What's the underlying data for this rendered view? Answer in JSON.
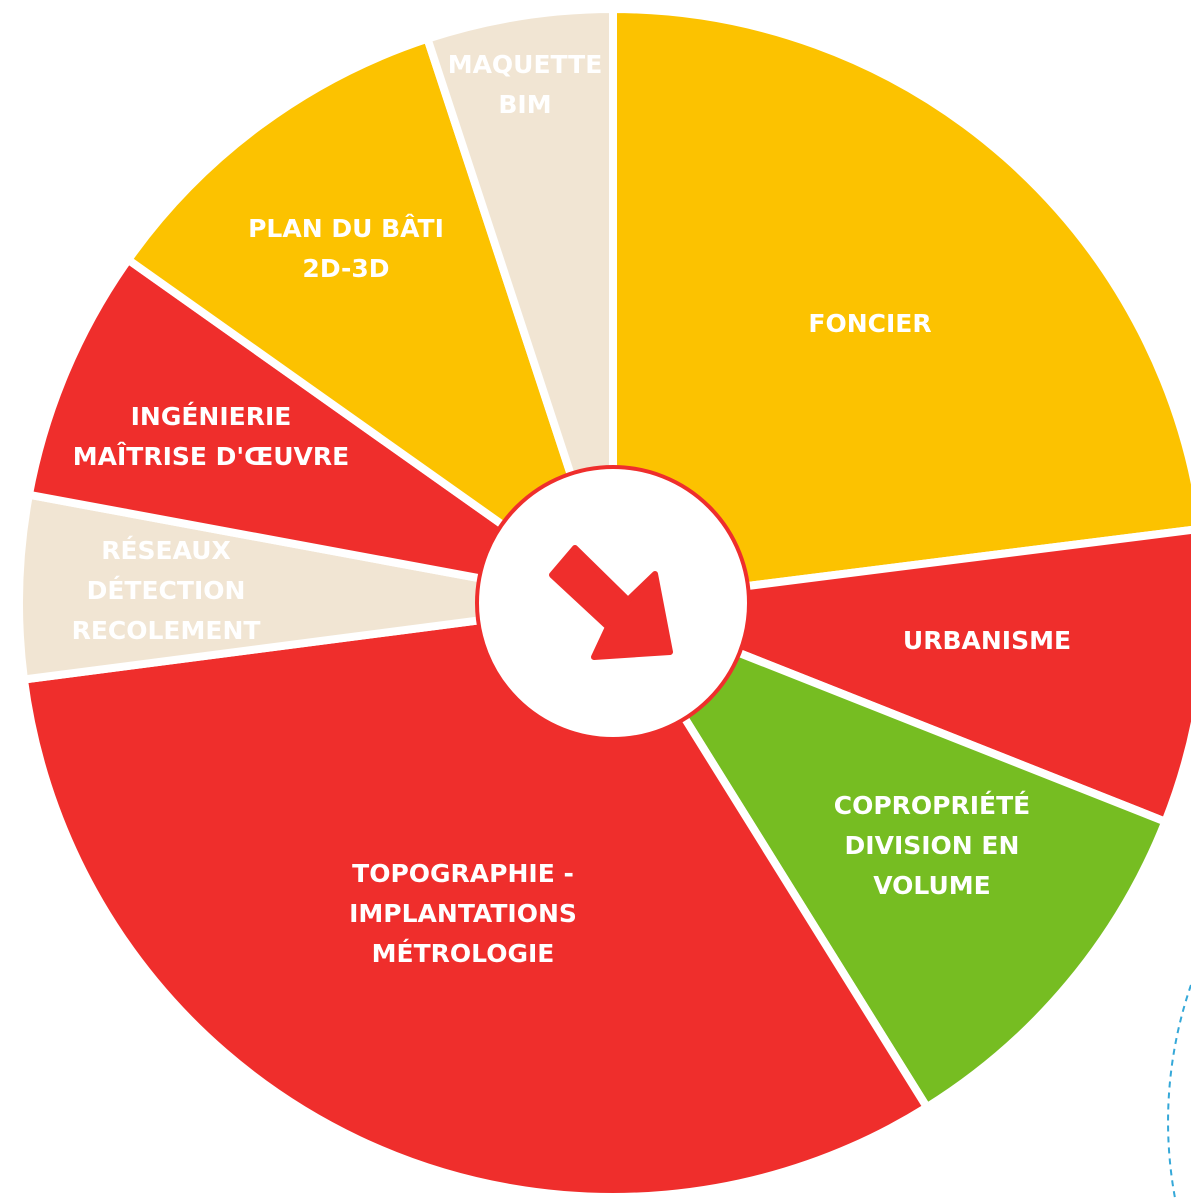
{
  "wheel": {
    "segments": [
      {
        "lines": [
          "FONCIER"
        ],
        "color": "#fcc200"
      },
      {
        "lines": [
          "URBANISME"
        ],
        "color": "#ef2e2c"
      },
      {
        "lines": [
          "COPROPRIÉTÉ",
          "DIVISION EN",
          "VOLUME"
        ],
        "color": "#76bd22"
      },
      {
        "lines": [
          "TOPOGRAPHIE -",
          "IMPLANTATIONS",
          "MÉTROLOGIE"
        ],
        "color": "#ef2e2c"
      },
      {
        "lines": [
          "RÉSEAUX",
          "DÉTECTION",
          "RECOLEMENT"
        ],
        "color": "#f1e5d3"
      },
      {
        "lines": [
          "INGÉNIERIE",
          "MAÎTRISE D'ŒUVRE"
        ],
        "color": "#ef2e2c"
      },
      {
        "lines": [
          "PLAN DU BÂTI",
          "2D-3D"
        ],
        "color": "#fcc200"
      },
      {
        "lines": [
          "MAQUETTE",
          "BIM"
        ],
        "color": "#f1e5d3"
      }
    ]
  }
}
